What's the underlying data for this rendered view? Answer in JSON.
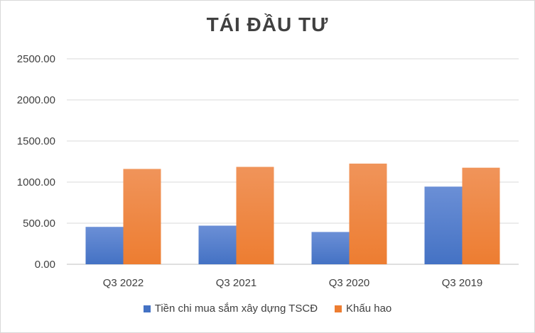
{
  "chart_data": {
    "type": "bar",
    "title": "TÁI ĐẦU TƯ",
    "categories": [
      "Q3 2022",
      "Q3 2021",
      "Q3 2020",
      "Q3 2019"
    ],
    "series": [
      {
        "name": "Tiền chi mua sắm xây dựng TSCĐ",
        "values": [
          455,
          470,
          393,
          945
        ],
        "color": "#4472C4",
        "color_light": "#6b8fd6"
      },
      {
        "name": "Khấu hao",
        "values": [
          1160,
          1185,
          1225,
          1175
        ],
        "color": "#ED7D31",
        "color_light": "#f0945a"
      }
    ],
    "ylim": [
      0,
      2500
    ],
    "yticks": [
      "0.00",
      "500.00",
      "1000.00",
      "1500.00",
      "2000.00",
      "2500.00"
    ],
    "grid": true,
    "legend_position": "bottom"
  }
}
